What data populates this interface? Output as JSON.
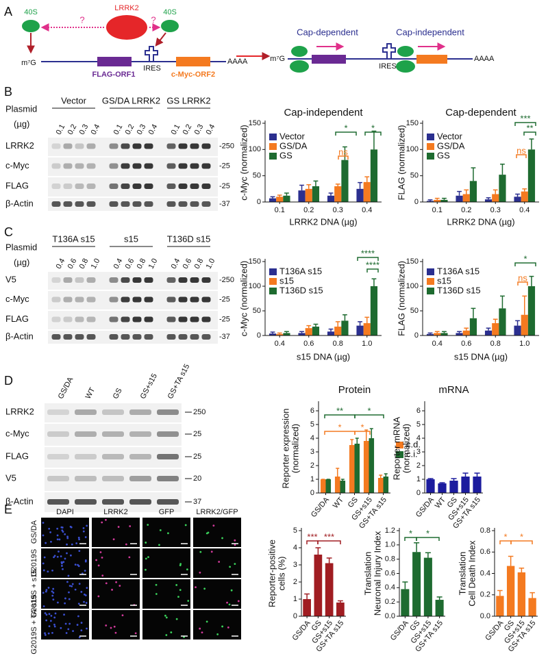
{
  "panel_labels": [
    "A",
    "B",
    "C",
    "D",
    "E"
  ],
  "schematic": {
    "left": {
      "ribosome_1": "40S",
      "kinase": "LRRK2",
      "q1": "?",
      "q2": "?",
      "ribosome_2": "40S",
      "cap": "m⁷G",
      "orf1": "FLAG-ORF1",
      "ires": "IRES",
      "orf2": "c-Myc-ORF2",
      "tail": "AAAA"
    },
    "right": {
      "label_1": "Cap-dependent",
      "label_2": "Cap-independent",
      "cap": "m⁷G",
      "ires": "IRES",
      "tail": "AAAA"
    }
  },
  "blot_b": {
    "plasmid": "Plasmid",
    "unit": "(µg)",
    "groups": [
      "Vector",
      "GS/DA LRRK2",
      "GS LRRK2"
    ],
    "lanes": [
      "0.1",
      "0.2",
      "0.3",
      "0.4",
      "0.1",
      "0.2",
      "0.3",
      "0.4",
      "0.1",
      "0.2",
      "0.3",
      "0.4"
    ],
    "rows": [
      "LRRK2",
      "c-Myc",
      "FLAG",
      "β-Actin"
    ],
    "markers": [
      "-250",
      "-25",
      "-25",
      "-37"
    ]
  },
  "blot_c": {
    "plasmid": "Plasmid",
    "unit": "(µg)",
    "groups": [
      "T136A s15",
      "s15",
      "T136D s15"
    ],
    "lanes": [
      "0.4",
      "0.6",
      "0.8",
      "1.0",
      "0.4",
      "0.6",
      "0.8",
      "1.0",
      "0.4",
      "0.6",
      "0.8",
      "1.0"
    ],
    "rows": [
      "V5",
      "c-Myc",
      "FLAG",
      "β-Actin"
    ],
    "markers": [
      "-250",
      "-25",
      "-25",
      "-37"
    ]
  },
  "blot_d": {
    "lanes": [
      "GS/DA",
      "WT",
      "GS",
      "GS+s15",
      "GS+TA s15"
    ],
    "rows": [
      "LRRK2",
      "c-Myc",
      "FLAG",
      "V5",
      "β-Actin"
    ],
    "markers": [
      "250",
      "25",
      "25",
      "20",
      "37"
    ]
  },
  "images_e": {
    "columns": [
      "DAPI",
      "LRRK2",
      "GFP",
      "LRRK2/GFP"
    ],
    "rows": [
      "GS/DA",
      "G2019S",
      "G2019S + s15",
      "G2019S + TA-s15"
    ]
  },
  "chart_data": [
    {
      "type": "bar",
      "title": "Cap-independent",
      "ylabel": [
        "c-Myc (normalized)"
      ],
      "xlabel": "LRRK2 DNA (µg)",
      "categories": [
        "0.1",
        "0.2",
        "0.3",
        "0.4"
      ],
      "ylim": [
        0,
        150
      ],
      "yticks": [
        0,
        50,
        100,
        150
      ],
      "series": [
        {
          "name": "Vector",
          "color": "#2b2f8f",
          "values": [
            7,
            22,
            12,
            25
          ],
          "errors": [
            3,
            10,
            5,
            12
          ]
        },
        {
          "name": "GS/DA",
          "color": "#f47a20",
          "values": [
            10,
            25,
            30,
            38
          ],
          "errors": [
            3,
            8,
            4,
            10
          ]
        },
        {
          "name": "GS",
          "color": "#1e6b30",
          "values": [
            12,
            30,
            80,
            100
          ],
          "errors": [
            5,
            10,
            25,
            35
          ]
        }
      ],
      "annotations": [
        {
          "text": "*",
          "color": "#1e6b30"
        },
        {
          "text": "*",
          "color": "#1e6b30"
        },
        {
          "text": "ns",
          "color": "#f47a20"
        }
      ]
    },
    {
      "type": "bar",
      "title": "Cap-dependent",
      "ylabel": [
        "FLAG (normalized)"
      ],
      "xlabel": "LRRK2 DNA (µg)",
      "categories": [
        "0.1",
        "0.2",
        "0.3",
        "0.4"
      ],
      "ylim": [
        0,
        150
      ],
      "yticks": [
        0,
        50,
        100,
        150
      ],
      "series": [
        {
          "name": "Vector",
          "color": "#2b2f8f",
          "values": [
            2,
            12,
            5,
            10
          ],
          "errors": [
            2,
            8,
            3,
            5
          ]
        },
        {
          "name": "GS/DA",
          "color": "#f47a20",
          "values": [
            4,
            15,
            15,
            20
          ],
          "errors": [
            3,
            8,
            8,
            5
          ]
        },
        {
          "name": "GS",
          "color": "#1e6b30",
          "values": [
            4,
            40,
            52,
            100
          ],
          "errors": [
            3,
            25,
            20,
            20
          ]
        }
      ],
      "annotations": [
        {
          "text": "***",
          "color": "#1e6b30"
        },
        {
          "text": "**",
          "color": "#1e6b30"
        },
        {
          "text": "ns",
          "color": "#f47a20"
        }
      ]
    },
    {
      "type": "bar",
      "ylabel": [
        "c-Myc (normalized)"
      ],
      "xlabel": "s15 DNA (µg)",
      "categories": [
        "0.4",
        "0.6",
        "0.8",
        "1.0"
      ],
      "ylim": [
        0,
        150
      ],
      "yticks": [
        0,
        50,
        100,
        150
      ],
      "series": [
        {
          "name": "T136A s15",
          "color": "#2b2f8f",
          "values": [
            4,
            5,
            8,
            20
          ],
          "errors": [
            3,
            3,
            5,
            8
          ]
        },
        {
          "name": "s15",
          "color": "#f47a20",
          "values": [
            3,
            15,
            18,
            25
          ],
          "errors": [
            2,
            5,
            10,
            12
          ]
        },
        {
          "name": "T136D s15",
          "color": "#1e6b30",
          "values": [
            5,
            18,
            30,
            100
          ],
          "errors": [
            3,
            5,
            12,
            15
          ]
        }
      ],
      "annotations": [
        {
          "text": "****",
          "color": "#1e6b30"
        },
        {
          "text": "****",
          "color": "#1e6b30"
        }
      ]
    },
    {
      "type": "bar",
      "ylabel": [
        "FLAG (normalized)"
      ],
      "xlabel": "s15 DNA (µg)",
      "categories": [
        "0.4",
        "0.6",
        "0.8",
        "1.0"
      ],
      "ylim": [
        0,
        150
      ],
      "yticks": [
        0,
        50,
        100,
        150
      ],
      "series": [
        {
          "name": "T136A s15",
          "color": "#2b2f8f",
          "values": [
            3,
            5,
            10,
            20
          ],
          "errors": [
            2,
            3,
            5,
            10
          ]
        },
        {
          "name": "s15",
          "color": "#f47a20",
          "values": [
            5,
            10,
            25,
            42
          ],
          "errors": [
            3,
            5,
            8,
            38
          ]
        },
        {
          "name": "T136D s15",
          "color": "#1e6b30",
          "values": [
            5,
            35,
            55,
            100
          ],
          "errors": [
            3,
            20,
            25,
            20
          ]
        }
      ],
      "annotations": [
        {
          "text": "*",
          "color": "#1e6b30"
        },
        {
          "text": "ns",
          "color": "#f47a20"
        }
      ]
    },
    {
      "type": "bar",
      "title": "Protein",
      "ylabel": [
        "Reporter expression",
        "(normalized)"
      ],
      "categories": [
        "GS/DA",
        "WT",
        "GS",
        "GS+s15",
        "GS+TA s15"
      ],
      "ylim": [
        0,
        6.5
      ],
      "yticks": [
        0,
        1,
        2,
        3,
        4,
        5,
        6
      ],
      "series": [
        {
          "name": "c.d.",
          "color": "#f47a20",
          "values": [
            1,
            1.2,
            3.5,
            3.8,
            1.1
          ],
          "errors": [
            0,
            0.6,
            0.4,
            0.8,
            0.2
          ]
        },
        {
          "name": "c.i.",
          "color": "#1e6b30",
          "values": [
            1,
            0.9,
            3.6,
            4,
            1.2
          ],
          "errors": [
            0,
            0.1,
            0.4,
            0.7,
            0.2
          ]
        }
      ],
      "annotations": [
        {
          "text": "**",
          "color": "#1e6b30"
        },
        {
          "text": "*",
          "color": "#1e6b30"
        },
        {
          "text": "*",
          "color": "#f47a20"
        },
        {
          "text": "*",
          "color": "#f47a20"
        }
      ]
    },
    {
      "type": "bar",
      "title": "mRNA",
      "ylabel": [
        "Reporter mRNA",
        "(normalized)"
      ],
      "categories": [
        "GS/DA",
        "WT",
        "GS",
        "GS+s15",
        "GS+TA s15"
      ],
      "ylim": [
        0,
        6.5
      ],
      "yticks": [
        0,
        1,
        2,
        3,
        4,
        5,
        6
      ],
      "color": "#1c1c9e",
      "values": [
        1,
        0.7,
        0.9,
        1.2,
        1.2
      ],
      "errors": [
        0.05,
        0.05,
        0.15,
        0.25,
        0.25
      ]
    },
    {
      "type": "bar",
      "ylabel": [
        "Reporter-positive",
        "cells (%)"
      ],
      "categories": [
        "GS/DA",
        "GS",
        "GS+s15",
        "GS+TA s15"
      ],
      "ylim": [
        0,
        5
      ],
      "yticks": [
        0,
        1,
        2,
        3,
        4,
        5
      ],
      "color": "#a01d22",
      "values": [
        1,
        3.6,
        3.1,
        0.8
      ],
      "errors": [
        0.3,
        0.4,
        0.3,
        0.1
      ],
      "annotations": [
        {
          "text": "***",
          "color": "#a01d22"
        },
        {
          "text": "***",
          "color": "#a01d22"
        }
      ]
    },
    {
      "type": "bar",
      "ylabel": [
        "Translation",
        "Neuronal Injury Index"
      ],
      "categories": [
        "GS/DA",
        "GS",
        "GS+s15",
        "GS+TA s15"
      ],
      "ylim": [
        0,
        1.2
      ],
      "yticks": [
        {
          "value": 0,
          "label": "0.0"
        },
        0.2,
        0.4,
        0.6,
        0.8,
        {
          "value": 1,
          "label": "1.0"
        },
        1.2
      ],
      "color": "#1e6b30",
      "values": [
        0.38,
        0.9,
        0.82,
        0.23
      ],
      "errors": [
        0.1,
        0.13,
        0.07,
        0.04
      ],
      "annotations": [
        {
          "text": "*",
          "color": "#1e6b30"
        },
        {
          "text": "*",
          "color": "#1e6b30"
        }
      ]
    },
    {
      "type": "bar",
      "ylabel": [
        "Translation",
        "Cell Death Index"
      ],
      "categories": [
        "GS/DA",
        "GS",
        "GS+s15",
        "GS+TA s15"
      ],
      "ylim": [
        0,
        0.8
      ],
      "yticks": [
        {
          "value": 0,
          "label": "0.0"
        },
        0.2,
        0.4,
        0.6,
        0.8
      ],
      "color": "#f47a20",
      "values": [
        0.19,
        0.47,
        0.41,
        0.17
      ],
      "errors": [
        0.05,
        0.09,
        0.04,
        0.05
      ],
      "annotations": [
        {
          "text": "*",
          "color": "#f47a20"
        },
        {
          "text": "*",
          "color": "#f47a20"
        }
      ]
    }
  ]
}
